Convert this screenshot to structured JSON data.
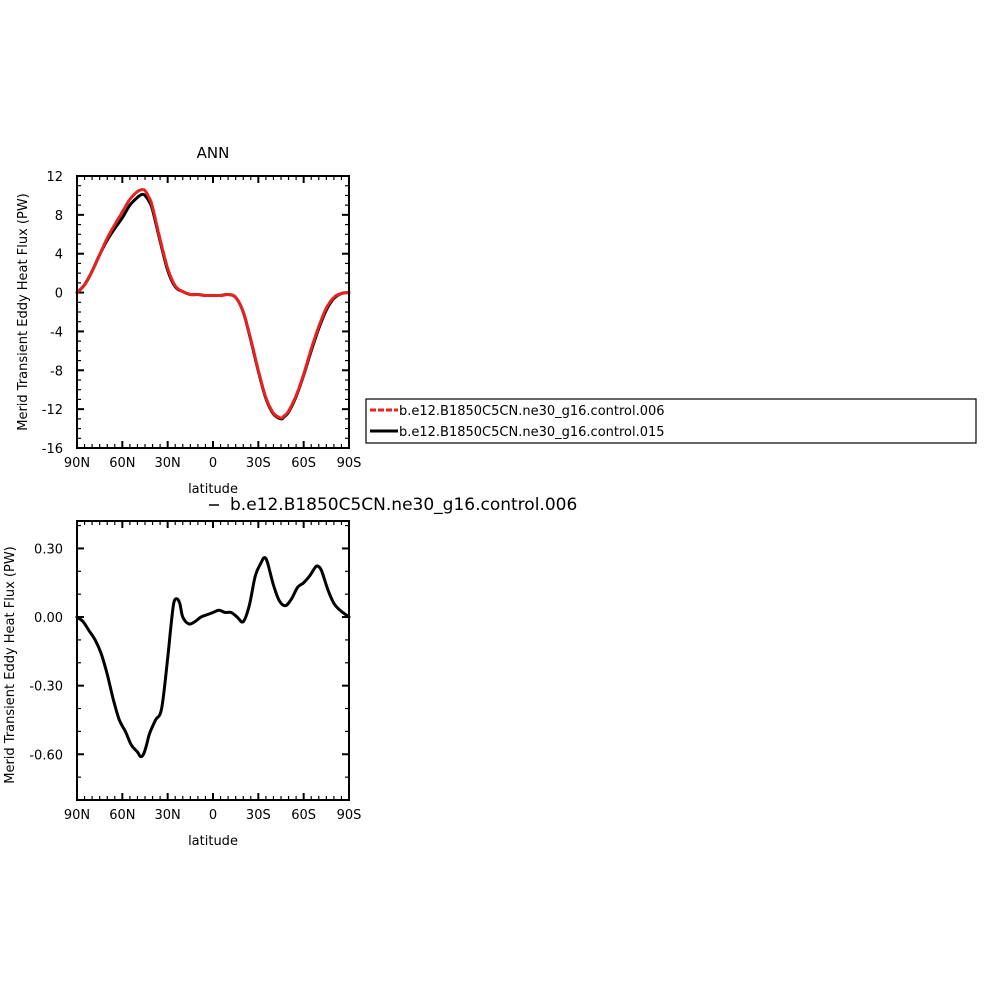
{
  "chart_data": [
    {
      "type": "line",
      "title": "ANN",
      "xlabel": "latitude",
      "ylabel": "Merid Transient Eddy Heat Flux (PW)",
      "xlim": [
        90,
        -90
      ],
      "ylim": [
        -16,
        12
      ],
      "x_ticks": [
        90,
        60,
        30,
        0,
        -30,
        -60,
        -90
      ],
      "x_tick_labels": [
        "90N",
        "60N",
        "30N",
        "0",
        "30S",
        "60S",
        "90S"
      ],
      "y_ticks": [
        -16,
        -12,
        -8,
        -4,
        0,
        4,
        8,
        12
      ],
      "y_tick_labels": [
        "-16",
        "-12",
        "-8",
        "-4",
        "0",
        "4",
        "8",
        "12"
      ],
      "legend_position": "right",
      "series": [
        {
          "name": "b.e12.B1850C5CN.ne30_g16.control.006",
          "color": "#e8231f",
          "dashed": true,
          "x": [
            90,
            85,
            80,
            75,
            70,
            65,
            60,
            55,
            50,
            47,
            45,
            42,
            40,
            35,
            30,
            25,
            20,
            15,
            10,
            5,
            0,
            -5,
            -10,
            -15,
            -20,
            -25,
            -30,
            -35,
            -40,
            -45,
            -47,
            -50,
            -55,
            -60,
            -65,
            -70,
            -75,
            -80,
            -85,
            -90
          ],
          "y": [
            0,
            0.8,
            2.2,
            3.9,
            5.6,
            7.0,
            8.3,
            9.6,
            10.4,
            10.6,
            10.5,
            9.7,
            8.8,
            5.5,
            2.5,
            0.7,
            0.1,
            -0.2,
            -0.2,
            -0.3,
            -0.3,
            -0.3,
            -0.2,
            -0.5,
            -2.0,
            -4.8,
            -8.0,
            -10.8,
            -12.4,
            -12.9,
            -12.7,
            -12.2,
            -10.6,
            -8.4,
            -5.8,
            -3.5,
            -1.6,
            -0.5,
            -0.1,
            0
          ]
        },
        {
          "name": "b.e12.B1850C5CN.ne30_g16.control.015",
          "color": "#000000",
          "dashed": false,
          "x": [
            90,
            85,
            80,
            75,
            70,
            65,
            60,
            55,
            50,
            47,
            45,
            42,
            40,
            35,
            30,
            25,
            20,
            15,
            10,
            5,
            0,
            -5,
            -10,
            -15,
            -20,
            -25,
            -30,
            -35,
            -40,
            -45,
            -47,
            -50,
            -55,
            -60,
            -65,
            -70,
            -75,
            -80,
            -85,
            -90
          ],
          "y": [
            0,
            0.8,
            2.2,
            3.9,
            5.4,
            6.6,
            7.7,
            9.0,
            9.8,
            10.1,
            10.0,
            9.3,
            8.5,
            5.3,
            2.3,
            0.6,
            0.1,
            -0.2,
            -0.2,
            -0.3,
            -0.3,
            -0.3,
            -0.2,
            -0.5,
            -2.0,
            -4.9,
            -8.1,
            -10.9,
            -12.5,
            -13.0,
            -12.8,
            -12.3,
            -10.7,
            -8.5,
            -6.0,
            -3.7,
            -1.8,
            -0.6,
            -0.1,
            0
          ]
        }
      ]
    },
    {
      "type": "line",
      "title": "",
      "diff_label": "b.e12.B1850C5CN.ne30_g16.control.006",
      "xlabel": "latitude",
      "ylabel": "Merid Transient Eddy Heat Flux (PW)",
      "xlim": [
        90,
        -90
      ],
      "ylim": [
        -0.8,
        0.42
      ],
      "x_ticks": [
        90,
        60,
        30,
        0,
        -30,
        -60,
        -90
      ],
      "x_tick_labels": [
        "90N",
        "60N",
        "30N",
        "0",
        "30S",
        "60S",
        "90S"
      ],
      "y_ticks": [
        -0.6,
        -0.3,
        0,
        0.3
      ],
      "y_tick_labels": [
        "-0.60",
        "-0.30",
        "0.00",
        "0.30"
      ],
      "series": [
        {
          "color": "#000000",
          "x": [
            90,
            86,
            82,
            78,
            74,
            70,
            66,
            62,
            58,
            54,
            50,
            48,
            46,
            44,
            42,
            38,
            34,
            30,
            28,
            26,
            24,
            22,
            20,
            16,
            12,
            8,
            4,
            0,
            -4,
            -8,
            -12,
            -16,
            -20,
            -24,
            -28,
            -32,
            -34,
            -36,
            -40,
            -44,
            -48,
            -52,
            -56,
            -60,
            -64,
            -68,
            -70,
            -72,
            -76,
            -80,
            -84,
            -88,
            -90
          ],
          "y": [
            0,
            -0.02,
            -0.06,
            -0.1,
            -0.16,
            -0.25,
            -0.36,
            -0.45,
            -0.5,
            -0.56,
            -0.59,
            -0.61,
            -0.6,
            -0.56,
            -0.51,
            -0.45,
            -0.4,
            -0.18,
            -0.05,
            0.06,
            0.08,
            0.06,
            0.0,
            -0.03,
            -0.02,
            0.0,
            0.01,
            0.02,
            0.03,
            0.02,
            0.02,
            0.0,
            -0.02,
            0.05,
            0.18,
            0.24,
            0.26,
            0.24,
            0.14,
            0.07,
            0.05,
            0.08,
            0.13,
            0.15,
            0.18,
            0.22,
            0.22,
            0.2,
            0.12,
            0.06,
            0.03,
            0.01,
            0.0
          ]
        }
      ]
    }
  ]
}
